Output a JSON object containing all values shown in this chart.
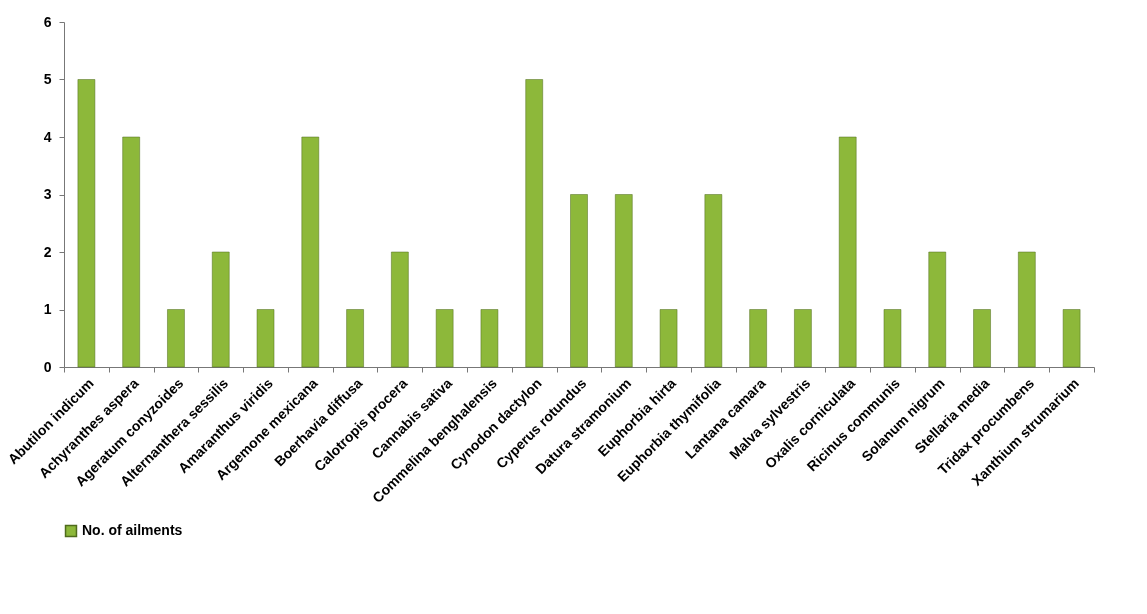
{
  "chart_data": {
    "type": "bar",
    "categories": [
      "Abutilon indicum",
      "Achyranthes aspera",
      "Ageratum conyzoides",
      "Alternanthera sessilis",
      "Amaranthus viridis",
      "Argemone mexicana",
      "Boerhavia diffusa",
      "Calotropis procera",
      "Cannabis sativa",
      "Commelina benghalensis",
      "Cynodon dactylon",
      "Cyperus rotundus",
      "Datura stramonium",
      "Euphorbia hirta",
      "Euphorbia thymifolia",
      "Lantana camara",
      "Malva sylvestris",
      "Oxalis corniculata",
      "Ricinus communis",
      "Solanum nigrum",
      "Stellaria media",
      "Tridax procumbens",
      "Xanthium strumarium"
    ],
    "series": [
      {
        "name": "No. of ailments",
        "color": "#8db83a",
        "values": [
          5,
          4,
          1,
          2,
          1,
          4,
          1,
          2,
          1,
          1,
          5,
          3,
          3,
          1,
          3,
          1,
          1,
          4,
          1,
          2,
          1,
          2,
          1
        ]
      }
    ],
    "ylim": [
      0,
      6
    ],
    "yticks": [
      0,
      1,
      2,
      3,
      4,
      5,
      6
    ],
    "grid": false,
    "legend": "bottom"
  }
}
